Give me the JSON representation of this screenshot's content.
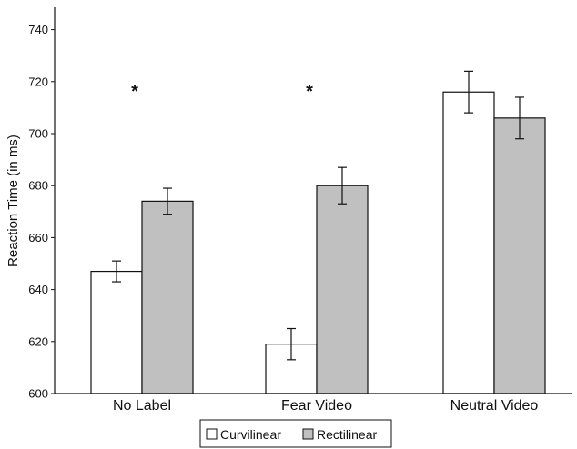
{
  "chart_data": {
    "type": "bar",
    "ylabel": "Reaction Time (in ms)",
    "xlabel": "",
    "ylim": [
      600,
      740
    ],
    "yticks": [
      600,
      620,
      640,
      660,
      680,
      700,
      720,
      740
    ],
    "categories": [
      "No Label",
      "Fear Video",
      "Neutral Video"
    ],
    "series": [
      {
        "name": "Curvilinear",
        "color": "#ffffff",
        "values": [
          647,
          619,
          716
        ],
        "err_low": [
          643,
          613,
          708
        ],
        "err_high": [
          651,
          625,
          724
        ]
      },
      {
        "name": "Rectilinear",
        "color": "#c0c0c0",
        "values": [
          674,
          680,
          706
        ],
        "err_low": [
          669,
          673,
          698
        ],
        "err_high": [
          679,
          687,
          714
        ]
      }
    ],
    "annotations": [
      {
        "category": "No Label",
        "text": "*"
      },
      {
        "category": "Fear Video",
        "text": "*"
      }
    ],
    "grid": false,
    "legend_position": "bottom-center"
  }
}
